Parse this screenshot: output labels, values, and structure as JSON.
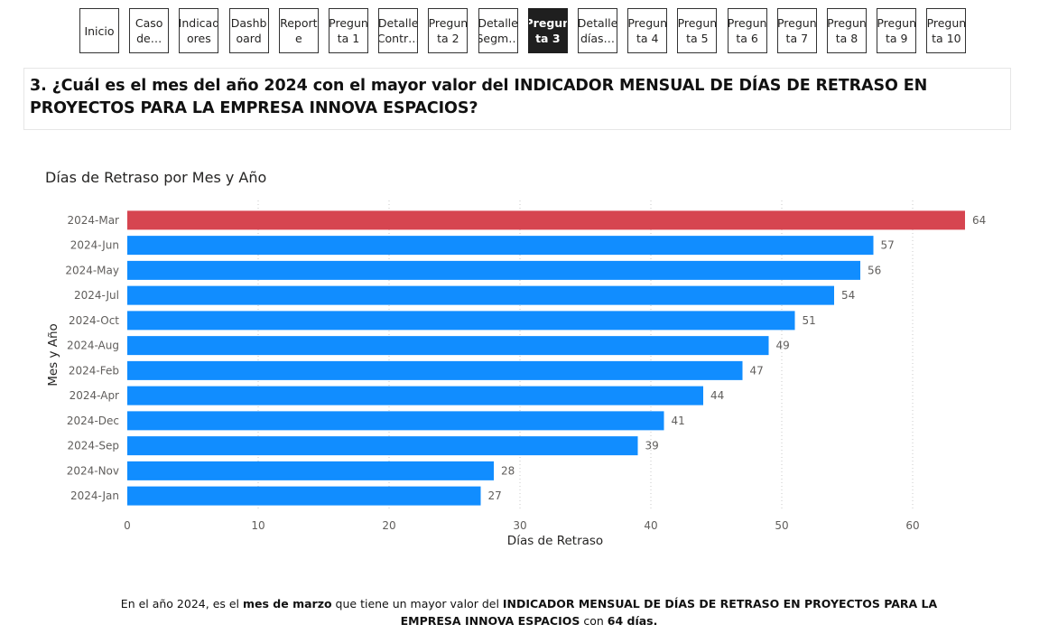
{
  "nav": {
    "buttons": [
      {
        "label": "Inicio",
        "active": false
      },
      {
        "label": "Caso\nde…",
        "active": false
      },
      {
        "label": "Indicad\nores",
        "active": false
      },
      {
        "label": "Dashb\noard",
        "active": false
      },
      {
        "label": "Report\ne",
        "active": false
      },
      {
        "label": "Pregun\nta 1",
        "active": false
      },
      {
        "label": "Detalle\nContr…",
        "active": false
      },
      {
        "label": "Pregun\nta 2",
        "active": false
      },
      {
        "label": "Detalle\nSegm…",
        "active": false
      },
      {
        "label": "Pregun\nta 3",
        "active": true
      },
      {
        "label": "Detalle\ndías…",
        "active": false
      },
      {
        "label": "Pregun\nta 4",
        "active": false
      },
      {
        "label": "Pregun\nta 5",
        "active": false
      },
      {
        "label": "Pregun\nta 6",
        "active": false
      },
      {
        "label": "Pregun\nta 7",
        "active": false
      },
      {
        "label": "Pregun\nta 8",
        "active": false
      },
      {
        "label": "Pregun\nta 9",
        "active": false
      },
      {
        "label": "Pregun\nta 10",
        "active": false
      }
    ]
  },
  "question": {
    "text": "3. ¿Cuál es el mes del año 2024 con el mayor valor del INDICADOR MENSUAL DE DÍAS DE RETRASO EN PROYECTOS PARA LA EMPRESA INNOVA ESPACIOS?"
  },
  "chart_data": {
    "type": "bar",
    "orientation": "horizontal",
    "title": "Días de Retraso por Mes y Año",
    "xlabel": "Días de Retraso",
    "ylabel": "Mes y Año",
    "categories": [
      "2024-Mar",
      "2024-Jun",
      "2024-May",
      "2024-Jul",
      "2024-Oct",
      "2024-Aug",
      "2024-Feb",
      "2024-Apr",
      "2024-Dec",
      "2024-Sep",
      "2024-Nov",
      "2024-Jan"
    ],
    "values": [
      64,
      57,
      56,
      54,
      51,
      49,
      47,
      44,
      41,
      39,
      28,
      27
    ],
    "highlight_index": 0,
    "colors": {
      "bar": "#118dff",
      "highlight": "#d64550"
    },
    "xlim": [
      0,
      64
    ],
    "xticks": [
      0,
      10,
      20,
      30,
      40,
      50,
      60
    ],
    "grid": true,
    "data_labels": true
  },
  "footer": {
    "parts": [
      {
        "text": "En el año 2024, es el ",
        "bold": false
      },
      {
        "text": "mes de marzo",
        "bold": true
      },
      {
        "text": " que tiene un mayor valor del ",
        "bold": false
      },
      {
        "text": "INDICADOR MENSUAL DE DÍAS DE RETRASO EN PROYECTOS PARA LA EMPRESA INNOVA ESPACIOS",
        "bold": true
      },
      {
        "text": " con ",
        "bold": false
      },
      {
        "text": "64 días.",
        "bold": true
      }
    ]
  }
}
